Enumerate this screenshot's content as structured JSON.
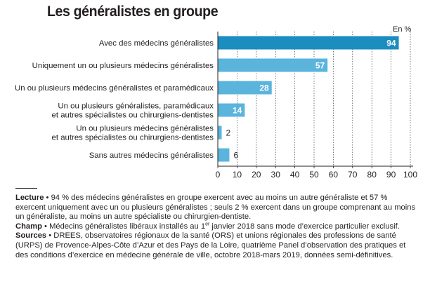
{
  "title": "Les généralistes en groupe",
  "unit_label": "En %",
  "chart_data": {
    "type": "bar",
    "orientation": "horizontal",
    "title": "Les généralistes en groupe",
    "unit": "En %",
    "categories": [
      [
        "Avec des médecins généralistes"
      ],
      [
        "Uniquement un ou plusieurs médecins généralistes"
      ],
      [
        "Un ou plusieurs médecins généralistes et paramédicaux"
      ],
      [
        "Un ou plusieurs généralistes, paramédicaux",
        "et autres spécialistes ou chirurgiens-dentistes"
      ],
      [
        "Un ou plusieurs médecins généralistes",
        "et autres spécialistes ou chirurgiens-dentistes"
      ],
      [
        "Sans autres médecins généralistes"
      ]
    ],
    "values": [
      94,
      57,
      28,
      14,
      2,
      6
    ],
    "value_labels": [
      "94",
      "57",
      "28",
      "14",
      "2",
      "6"
    ],
    "xlim": [
      0,
      100
    ],
    "xticks": [
      0,
      10,
      20,
      30,
      40,
      50,
      60,
      70,
      80,
      90,
      100
    ],
    "grid": "vertical",
    "colors": {
      "dark": "#1b8dbf",
      "light": "#5ab4dc",
      "axis": "#231f20",
      "grid": "#231f20"
    }
  },
  "notes": {
    "lecture_label": "Lecture",
    "lecture_text": "94 % des médecins généralistes en groupe exercent avec au moins un autre généraliste et 57 % exercent uniquement avec un ou plusieurs généralistes ; seuls 2 % exercent dans un groupe comprenant au moins un généraliste, au moins un autre spécialiste ou chirurgien-dentiste.",
    "champ_label": "Champ",
    "champ_text_1": "Médecins généralistes libéraux installés au 1",
    "champ_sup": "er",
    "champ_text_2": " janvier 2018 sans mode d’exercice particulier exclusif.",
    "sources_label": "Sources",
    "sources_text": "DREES, observatoires régionaux de la santé (ORS) et unions régionales des professions de santé (URPS) de Provence-Alpes-Côte d’Azur et des Pays de la Loire, quatrième Panel d’observation des pratiques et des conditions d’exercice en médecine générale de ville, octobre 2018-mars 2019, données semi-définitives.",
    "bullet": " • "
  }
}
